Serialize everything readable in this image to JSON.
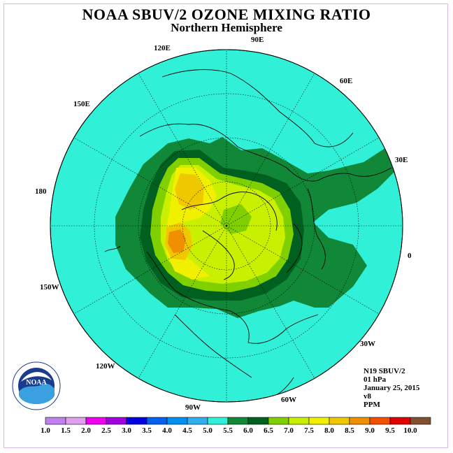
{
  "title": "NOAA SBUV/2 OZONE MIXING RATIO",
  "subtitle": "Northern Hemisphere",
  "longitude_labels": {
    "e90": "90E",
    "e120": "120E",
    "e60": "60E",
    "e150": "150E",
    "e30": "30E",
    "e180": "180",
    "zero": "0",
    "w150": "150W",
    "w30": "30W",
    "w120": "120W",
    "w60": "60W",
    "w90": "90W"
  },
  "info": {
    "satellite": "N19 SBUV/2",
    "level": "01 hPa",
    "date": "January 25, 2015",
    "version": "v8",
    "units": "PPM"
  },
  "logo_text": "NOAA",
  "scale": {
    "ticks": [
      "1.0",
      "1.5",
      "2.0",
      "2.5",
      "3.0",
      "3.5",
      "4.0",
      "4.5",
      "5.0",
      "5.5",
      "6.0",
      "6.5",
      "7.0",
      "7.5",
      "8.0",
      "8.5",
      "9.0",
      "9.5",
      "10.0"
    ],
    "colors": [
      "#c080f0",
      "#e0a0f0",
      "#f000f0",
      "#a000e0",
      "#0000e0",
      "#0060f0",
      "#0090f0",
      "#30b0f0",
      "#30f0d8",
      "#108838",
      "#006020",
      "#80d000",
      "#c8f000",
      "#f0f000",
      "#f0c800",
      "#f09000",
      "#f05000",
      "#e00000",
      "#805030"
    ]
  }
}
